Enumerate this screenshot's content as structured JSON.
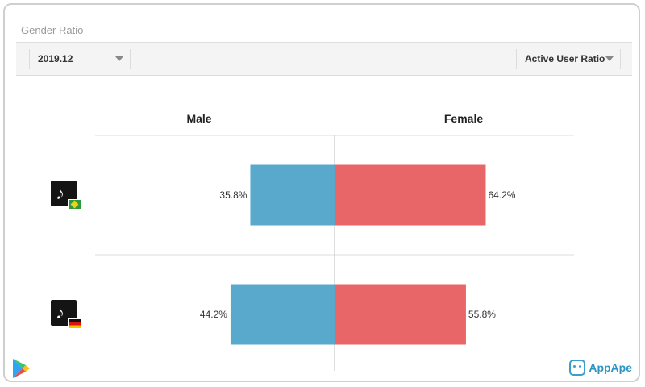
{
  "card": {
    "title": "Gender Ratio"
  },
  "toolbar": {
    "period": "2019.12",
    "metric": "Active User Ratio"
  },
  "branding": {
    "brand_name": "AppApe",
    "store_icon": "google-play-icon"
  },
  "colors": {
    "male": "#58a9cc",
    "female": "#e86568"
  },
  "chart_data": {
    "type": "bar",
    "orientation": "horizontal-diverging",
    "columns": [
      "Male",
      "Female"
    ],
    "rows": [
      {
        "app_icon": "tiktok-icon",
        "flag": "brazil-flag-icon",
        "male": 35.8,
        "female": 64.2,
        "male_label": "35.8%",
        "female_label": "64.2%"
      },
      {
        "app_icon": "tiktok-icon",
        "flag": "germany-flag-icon",
        "male": 44.2,
        "female": 55.8,
        "male_label": "44.2%",
        "female_label": "55.8%"
      }
    ],
    "value_range": [
      0,
      100
    ],
    "legend": "none",
    "grid": false
  }
}
